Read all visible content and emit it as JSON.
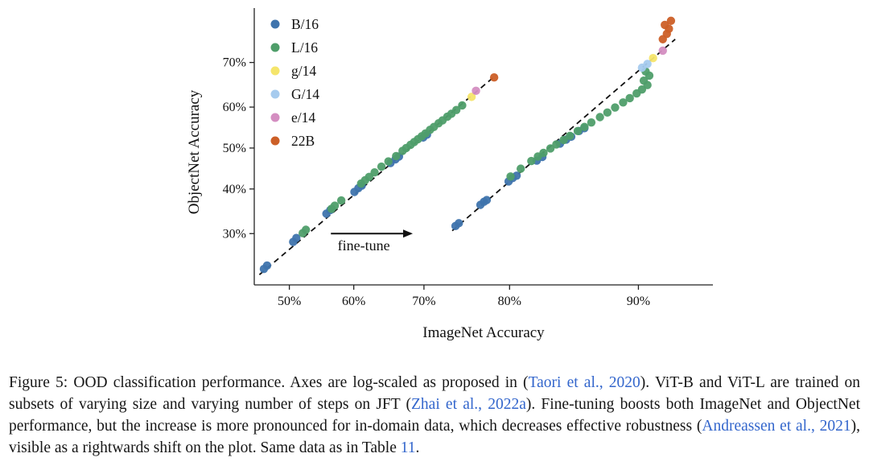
{
  "chart_data": {
    "type": "scatter",
    "title": "",
    "xlabel": "ImageNet Accuracy",
    "ylabel": "ObjectNet Accuracy",
    "x_scale": "logit",
    "y_scale": "logit",
    "x_domain": [
      44.5,
      93.5
    ],
    "y_domain": [
      20.5,
      80.0
    ],
    "x_ticks": [
      50,
      60,
      70,
      80,
      90
    ],
    "y_ticks": [
      30,
      40,
      50,
      60,
      70
    ],
    "tick_suffix": "%",
    "grid": false,
    "legend_position": "upper left",
    "trend_line_color": "#111111",
    "series": [
      {
        "name": "B/16",
        "color": "#3f74ad",
        "points": [
          [
            46.0,
            23.2
          ],
          [
            46.5,
            23.8
          ],
          [
            50.6,
            28.3
          ],
          [
            51.1,
            29.1
          ],
          [
            55.8,
            34.3
          ],
          [
            56.4,
            35.1
          ],
          [
            60.1,
            39.3
          ],
          [
            60.7,
            40.2
          ],
          [
            61.2,
            40.8
          ],
          [
            65.4,
            46.3
          ],
          [
            66.1,
            47.2
          ],
          [
            66.6,
            47.9
          ],
          [
            69.9,
            52.6
          ],
          [
            70.4,
            53.3
          ],
          [
            74.0,
            31.6
          ],
          [
            74.4,
            32.2
          ],
          [
            76.9,
            36.3
          ],
          [
            77.3,
            37.0
          ],
          [
            77.6,
            37.4
          ],
          [
            79.9,
            41.8
          ],
          [
            80.3,
            42.6
          ],
          [
            80.7,
            43.2
          ],
          [
            82.6,
            46.9
          ],
          [
            83.1,
            47.8
          ],
          [
            84.6,
            51.1
          ],
          [
            85.1,
            52.1
          ],
          [
            85.5,
            52.8
          ],
          [
            86.1,
            54.2
          ],
          [
            86.5,
            54.9
          ]
        ]
      },
      {
        "name": "L/16",
        "color": "#4f9e6a",
        "points": [
          [
            52.1,
            30.1
          ],
          [
            52.6,
            30.8
          ],
          [
            56.6,
            35.4
          ],
          [
            57.1,
            36.1
          ],
          [
            58.1,
            37.3
          ],
          [
            61.1,
            41.3
          ],
          [
            61.7,
            42.1
          ],
          [
            62.3,
            42.9
          ],
          [
            63.1,
            44.0
          ],
          [
            64.1,
            45.4
          ],
          [
            65.1,
            46.7
          ],
          [
            66.2,
            48.0
          ],
          [
            67.1,
            49.3
          ],
          [
            67.6,
            50.0
          ],
          [
            68.2,
            50.8
          ],
          [
            68.7,
            51.5
          ],
          [
            69.2,
            52.2
          ],
          [
            69.7,
            52.9
          ],
          [
            70.2,
            53.6
          ],
          [
            70.8,
            54.5
          ],
          [
            71.3,
            55.2
          ],
          [
            71.9,
            56.1
          ],
          [
            72.4,
            56.8
          ],
          [
            73.0,
            57.7
          ],
          [
            73.5,
            58.4
          ],
          [
            74.1,
            59.3
          ],
          [
            74.8,
            60.4
          ],
          [
            80.1,
            43.0
          ],
          [
            81.1,
            44.9
          ],
          [
            82.1,
            46.8
          ],
          [
            82.7,
            47.9
          ],
          [
            83.2,
            48.8
          ],
          [
            83.8,
            49.9
          ],
          [
            84.3,
            50.9
          ],
          [
            84.9,
            52.0
          ],
          [
            85.4,
            53.0
          ],
          [
            86.0,
            54.2
          ],
          [
            86.5,
            55.2
          ],
          [
            87.0,
            56.3
          ],
          [
            87.6,
            57.6
          ],
          [
            88.1,
            58.7
          ],
          [
            88.6,
            59.9
          ],
          [
            89.1,
            61.1
          ],
          [
            89.5,
            62.1
          ],
          [
            89.9,
            63.2
          ],
          [
            90.2,
            64.1
          ],
          [
            90.5,
            65.1
          ],
          [
            90.3,
            66.1
          ],
          [
            90.6,
            67.2
          ],
          [
            90.4,
            68.1
          ]
        ]
      },
      {
        "name": "g/14",
        "color": "#f5e56b",
        "points": [
          [
            75.9,
            62.4
          ],
          [
            90.8,
            70.9
          ]
        ]
      },
      {
        "name": "G/14",
        "color": "#a6cbee",
        "points": [
          [
            90.2,
            68.9
          ],
          [
            90.5,
            69.7
          ]
        ]
      },
      {
        "name": "e/14",
        "color": "#d48ec1",
        "points": [
          [
            76.4,
            63.8
          ],
          [
            91.3,
            72.4
          ]
        ]
      },
      {
        "name": "22B",
        "color": "#cc5f27",
        "points": [
          [
            78.4,
            66.8
          ],
          [
            91.3,
            74.6
          ],
          [
            91.5,
            75.6
          ],
          [
            91.6,
            76.5
          ],
          [
            91.4,
            77.2
          ],
          [
            91.7,
            77.9
          ]
        ]
      }
    ],
    "trend_lines": [
      {
        "from": [
          45.3,
          22.2
        ],
        "to": [
          78.6,
          67.3
        ]
      },
      {
        "from": [
          73.6,
          30.6
        ],
        "to": [
          91.9,
          74.6
        ]
      }
    ],
    "annotation": {
      "label": "fine-tune",
      "y": 30.0,
      "x_from": 56.5,
      "x_to": 68.5,
      "label_x": 61.5,
      "label_y": 27.4
    }
  },
  "caption": {
    "link_color": "#3366cc",
    "segments": [
      {
        "t": "Figure 5: OOD classification performance.  Axes are log-scaled as proposed in (",
        "link": false
      },
      {
        "t": "Taori et al., 2020",
        "link": true
      },
      {
        "t": ").  ViT-B and ViT-L are trained on subsets of varying size and varying number of steps on JFT (",
        "link": false
      },
      {
        "t": "Zhai et al., 2022a",
        "link": true
      },
      {
        "t": "). Fine-tuning boosts both ImageNet and ObjectNet performance, but the increase is more pronounced for in-domain data, which decreases effective robustness (",
        "link": false
      },
      {
        "t": "Andreassen et al., 2021",
        "link": true
      },
      {
        "t": "), visible as a rightwards shift on the plot. Same data as in Table ",
        "link": false
      },
      {
        "t": "11",
        "link": true
      },
      {
        "t": ".",
        "link": false
      }
    ]
  }
}
